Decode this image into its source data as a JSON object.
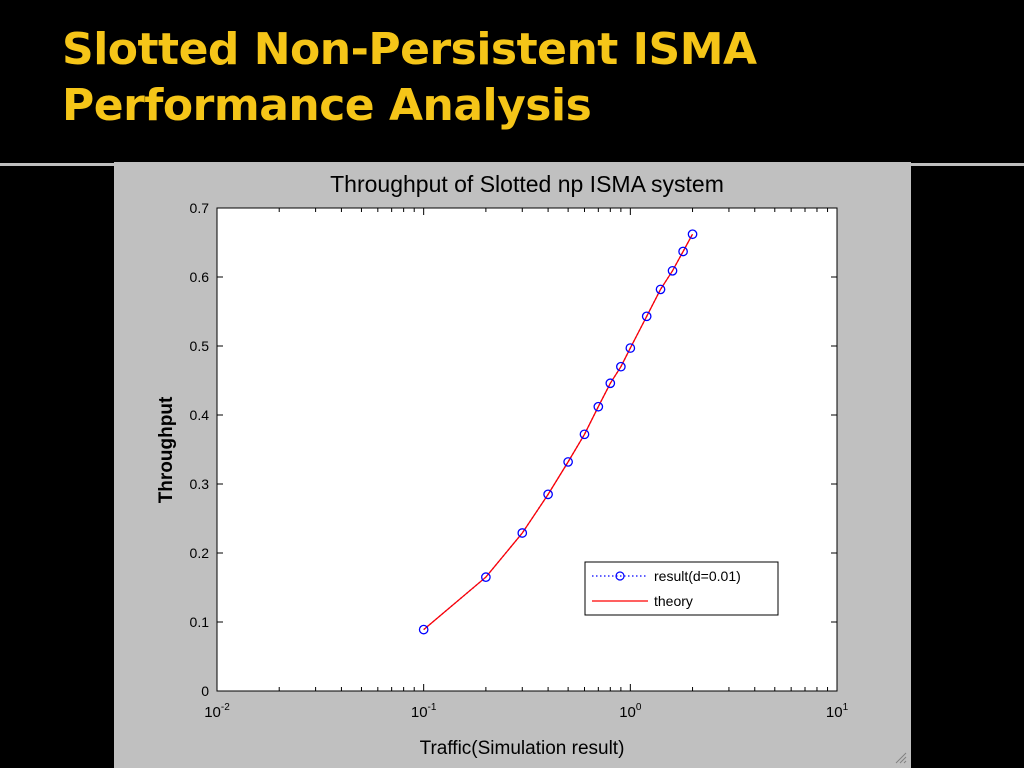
{
  "slide": {
    "title_line1": "Slotted Non-Persistent ISMA",
    "title_line2": "Performance Analysis"
  },
  "colors": {
    "title": "#f5c518",
    "background": "#000000",
    "figure_bg": "#c0c0c0",
    "result_series": "#0000ff",
    "theory_series": "#ff0000"
  },
  "chart_data": {
    "type": "line",
    "title": "Throughput of Slotted np ISMA system",
    "xlabel": "Traffic(Simulation result)",
    "ylabel": "Throughput",
    "xscale": "log",
    "xlim": [
      0.01,
      10
    ],
    "ylim": [
      0,
      0.7
    ],
    "grid": false,
    "legend_position": "lower-right",
    "xticks": [
      {
        "base": "10",
        "exp": "-2",
        "value": 0.01
      },
      {
        "base": "10",
        "exp": "-1",
        "value": 0.1
      },
      {
        "base": "10",
        "exp": "0",
        "value": 1
      },
      {
        "base": "10",
        "exp": "1",
        "value": 10
      }
    ],
    "yticks": [
      "0",
      "0.1",
      "0.2",
      "0.3",
      "0.4",
      "0.5",
      "0.6",
      "0.7"
    ],
    "series": [
      {
        "name": "result(d=0.01)",
        "style": "dotted-circle-markers",
        "color": "#0000ff",
        "x": [
          0.1,
          0.2,
          0.3,
          0.4,
          0.5,
          0.6,
          0.7,
          0.8,
          0.9,
          1.0,
          1.2,
          1.4,
          1.6,
          1.8,
          2.0
        ],
        "y": [
          0.089,
          0.165,
          0.229,
          0.285,
          0.332,
          0.372,
          0.412,
          0.446,
          0.47,
          0.497,
          0.543,
          0.582,
          0.609,
          0.637,
          0.662
        ]
      },
      {
        "name": "theory",
        "style": "solid",
        "color": "#ff0000",
        "x": [
          0.1,
          0.2,
          0.3,
          0.4,
          0.5,
          0.6,
          0.7,
          0.8,
          0.9,
          1.0,
          1.2,
          1.4,
          1.6,
          1.8,
          2.0
        ],
        "y": [
          0.089,
          0.165,
          0.229,
          0.285,
          0.332,
          0.372,
          0.412,
          0.446,
          0.47,
          0.497,
          0.543,
          0.582,
          0.609,
          0.637,
          0.662
        ]
      }
    ]
  }
}
